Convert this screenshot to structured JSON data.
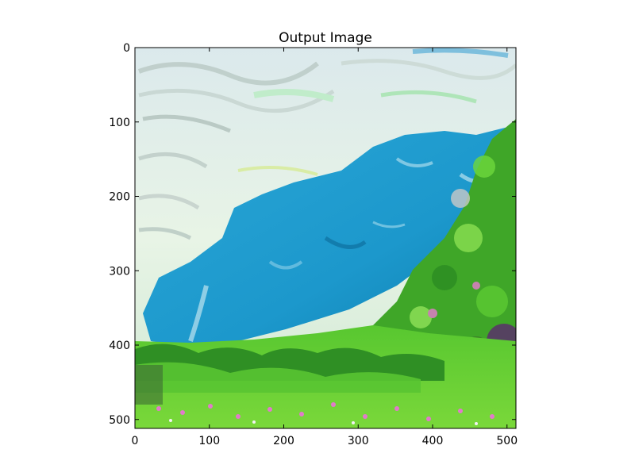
{
  "figure": {
    "title": "Output Image"
  },
  "image": {
    "description_colors": {
      "sky": "#e8f0e8",
      "cloud_shadow": "#b8c8c0",
      "water": "#1e9ed0",
      "water_dark": "#0a6fa0",
      "grass": "#6ad62a",
      "grass_dark": "#2f8a22",
      "flowers": "#e27acb",
      "frame": "#000000"
    }
  },
  "axes": {
    "x_ticks": [
      "0",
      "100",
      "200",
      "300",
      "400",
      "500"
    ],
    "y_ticks": [
      "0",
      "100",
      "200",
      "300",
      "400",
      "500"
    ],
    "xlim": [
      0,
      512
    ],
    "ylim": [
      0,
      512
    ]
  }
}
